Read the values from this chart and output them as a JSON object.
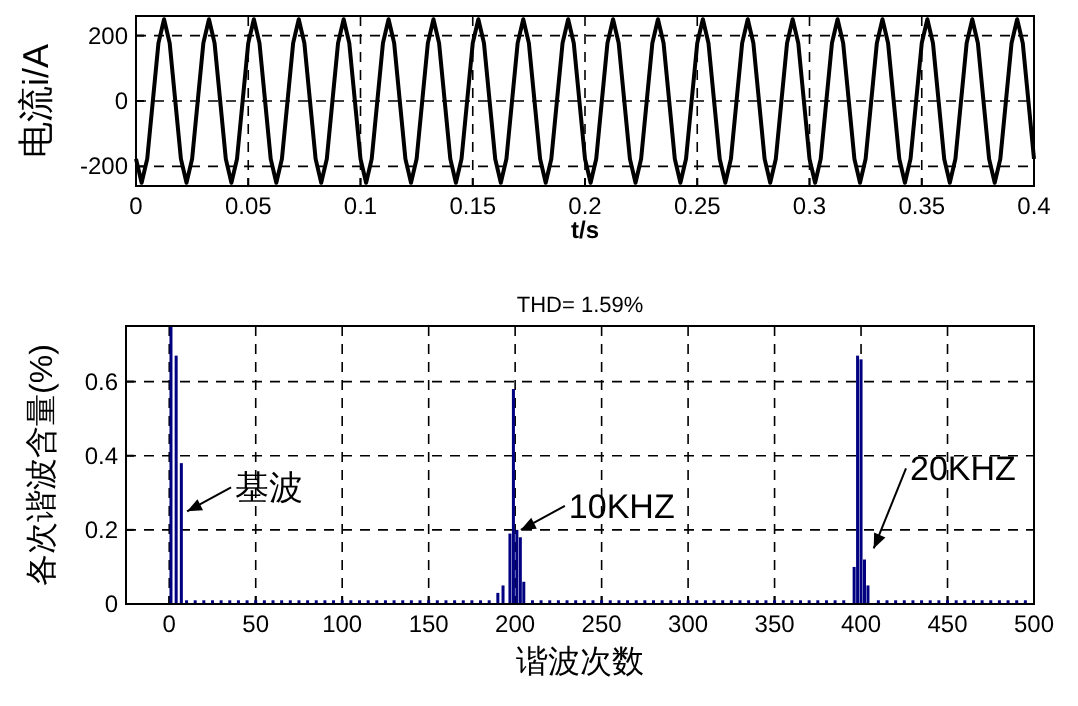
{
  "chart_data": [
    {
      "type": "line",
      "xlabel": "t/s",
      "ylabel": "电流i/A",
      "xlim": [
        0,
        0.4
      ],
      "ylim": [
        -260,
        260
      ],
      "xticks": [
        0,
        0.05,
        0.1,
        0.15,
        0.2,
        0.25,
        0.3,
        0.35,
        0.4
      ],
      "yticks": [
        -200,
        0,
        200
      ],
      "grid": true,
      "x": [
        0,
        0.0025,
        0.005,
        0.0075,
        0.01,
        0.0125,
        0.015,
        0.0175,
        0.02,
        0.0225,
        0.025,
        0.0275,
        0.03,
        0.0325,
        0.035,
        0.0375,
        0.04,
        0.0425,
        0.045,
        0.0475,
        0.05,
        0.0525,
        0.055,
        0.0575,
        0.06,
        0.0625,
        0.065,
        0.0675,
        0.07,
        0.0725,
        0.075,
        0.0775,
        0.08,
        0.0825,
        0.085,
        0.0875,
        0.09,
        0.0925,
        0.095,
        0.0975,
        0.1,
        0.1025,
        0.105,
        0.1075,
        0.11,
        0.1125,
        0.115,
        0.1175,
        0.12,
        0.1225,
        0.125,
        0.1275,
        0.13,
        0.1325,
        0.135,
        0.1375,
        0.14,
        0.1425,
        0.145,
        0.1475,
        0.15,
        0.1525,
        0.155,
        0.1575,
        0.16,
        0.1625,
        0.165,
        0.1675,
        0.17,
        0.1725,
        0.175,
        0.1775,
        0.18,
        0.1825,
        0.185,
        0.1875,
        0.19,
        0.1925,
        0.195,
        0.1975,
        0.2,
        0.2025,
        0.205,
        0.2075,
        0.21,
        0.2125,
        0.215,
        0.2175,
        0.22,
        0.2225,
        0.225,
        0.2275,
        0.23,
        0.2325,
        0.235,
        0.2375,
        0.24,
        0.2425,
        0.245,
        0.2475,
        0.25,
        0.2525,
        0.255,
        0.2575,
        0.26,
        0.2625,
        0.265,
        0.2675,
        0.27,
        0.2725,
        0.275,
        0.2775,
        0.28,
        0.2825,
        0.285,
        0.2875,
        0.29,
        0.2925,
        0.295,
        0.2975,
        0.3,
        0.3025,
        0.305,
        0.3075,
        0.31,
        0.3125,
        0.315,
        0.3175,
        0.32,
        0.3225,
        0.325,
        0.3275,
        0.33,
        0.3325,
        0.335,
        0.3375,
        0.34,
        0.3425,
        0.345,
        0.3475,
        0.35,
        0.3525,
        0.355,
        0.3575,
        0.36,
        0.3625,
        0.365,
        0.3675,
        0.37,
        0.3725,
        0.375,
        0.3775,
        0.38,
        0.3825,
        0.385,
        0.3875,
        0.39,
        0.3925,
        0.395,
        0.3975,
        0.4
      ],
      "series": [
        {
          "color": "#000000",
          "values": [
            -177,
            -250,
            -177,
            0,
            177,
            250,
            177,
            0,
            -177,
            -250,
            -177,
            0,
            177,
            250,
            177,
            0,
            -177,
            -250,
            -177,
            0,
            177,
            250,
            177,
            0,
            -177,
            -250,
            -177,
            0,
            177,
            250,
            177,
            0,
            -177,
            -250,
            -177,
            0,
            177,
            250,
            177,
            0,
            -177,
            -250,
            -177,
            0,
            177,
            250,
            177,
            0,
            -177,
            -250,
            -177,
            0,
            177,
            250,
            177,
            0,
            -177,
            -250,
            -177,
            0,
            177,
            250,
            177,
            0,
            -177,
            -250,
            -177,
            0,
            177,
            250,
            177,
            0,
            -177,
            -250,
            -177,
            0,
            177,
            250,
            177,
            0,
            -177,
            -250,
            -177,
            0,
            177,
            250,
            177,
            0,
            -177,
            -250,
            -177,
            0,
            177,
            250,
            177,
            0,
            -177,
            -250,
            -177,
            0,
            177,
            250,
            177,
            0,
            -177,
            -250,
            -177,
            0,
            177,
            250,
            177,
            0,
            -177,
            -250,
            -177,
            0,
            177,
            250,
            177,
            0,
            -177,
            -250,
            -177,
            0,
            177,
            250,
            177,
            0,
            -177,
            -250,
            -177,
            0,
            177,
            250,
            177,
            0,
            -177,
            -250,
            -177,
            0,
            177,
            250,
            177,
            0,
            -177,
            -250,
            -177,
            0,
            177,
            250,
            177,
            0,
            -177,
            -250,
            -177,
            0,
            177,
            250,
            177,
            0,
            -177
          ]
        }
      ]
    },
    {
      "type": "bar",
      "title": "THD= 1.59%",
      "xlabel": "谐波次数",
      "ylabel": "各次谐波含量(%)",
      "xlim": [
        -25,
        500
      ],
      "ylim": [
        0,
        0.75
      ],
      "xticks": [
        0,
        50,
        100,
        150,
        200,
        250,
        300,
        350,
        400,
        450,
        500
      ],
      "yticks": [
        0,
        0.2,
        0.4,
        0.6
      ],
      "grid": true,
      "x": [
        1,
        4,
        7,
        10,
        15,
        20,
        25,
        30,
        35,
        40,
        45,
        50,
        55,
        60,
        65,
        70,
        75,
        80,
        85,
        90,
        95,
        100,
        105,
        110,
        115,
        120,
        125,
        130,
        135,
        140,
        145,
        150,
        155,
        160,
        165,
        170,
        175,
        180,
        185,
        190,
        193,
        197,
        199,
        201,
        203,
        205,
        210,
        215,
        220,
        225,
        230,
        235,
        240,
        245,
        250,
        255,
        260,
        265,
        270,
        275,
        280,
        285,
        290,
        295,
        300,
        305,
        310,
        315,
        320,
        325,
        330,
        335,
        340,
        345,
        350,
        355,
        360,
        365,
        370,
        375,
        380,
        385,
        390,
        396,
        398,
        400,
        402,
        404,
        410,
        415,
        420,
        425,
        430,
        435,
        440,
        445,
        450,
        455,
        460,
        465,
        470,
        475,
        480,
        485,
        490,
        495
      ],
      "series": [
        {
          "color": "#000080",
          "values": [
            0.75,
            0.67,
            0.38,
            0.01,
            0.01,
            0.01,
            0.01,
            0.01,
            0.01,
            0.01,
            0.01,
            0.01,
            0.01,
            0.01,
            0.01,
            0.01,
            0.01,
            0.01,
            0.01,
            0.01,
            0.01,
            0.01,
            0.01,
            0.01,
            0.01,
            0.01,
            0.01,
            0.01,
            0.01,
            0.01,
            0.01,
            0.01,
            0.01,
            0.01,
            0.01,
            0.01,
            0.01,
            0.01,
            0.01,
            0.03,
            0.05,
            0.19,
            0.58,
            0.2,
            0.18,
            0.06,
            0.01,
            0.01,
            0.01,
            0.01,
            0.01,
            0.01,
            0.01,
            0.01,
            0.01,
            0.01,
            0.01,
            0.01,
            0.01,
            0.01,
            0.01,
            0.01,
            0.01,
            0.01,
            0.01,
            0.01,
            0.01,
            0.01,
            0.01,
            0.01,
            0.01,
            0.01,
            0.01,
            0.01,
            0.01,
            0.01,
            0.01,
            0.01,
            0.01,
            0.01,
            0.01,
            0.01,
            0.01,
            0.1,
            0.67,
            0.66,
            0.12,
            0.05,
            0.01,
            0.01,
            0.01,
            0.01,
            0.01,
            0.01,
            0.01,
            0.01,
            0.01,
            0.01,
            0.01,
            0.01,
            0.01,
            0.01,
            0.01,
            0.01,
            0.01,
            0.01
          ]
        }
      ],
      "annotations": [
        {
          "text": "基波",
          "x": 8,
          "y": 0.25
        },
        {
          "text": "10KHZ",
          "x": 201,
          "y": 0.2
        },
        {
          "text": "20KHZ",
          "x": 405,
          "y": 0.15
        }
      ]
    }
  ]
}
